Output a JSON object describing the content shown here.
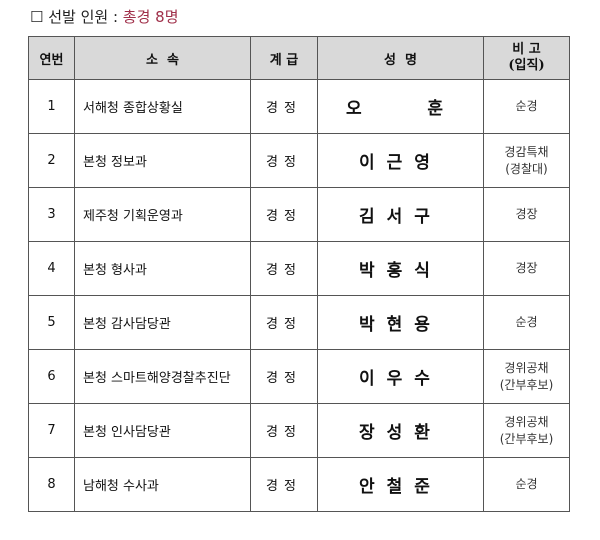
{
  "title": {
    "prefix": "☐ 선발 인원 : ",
    "highlight": "총경 8명"
  },
  "headers": [
    "연번",
    "소  속",
    "계 급",
    "성  명",
    "비 고\n(입직)"
  ],
  "rows": [
    {
      "no": "1",
      "org": "서해청 종합상황실",
      "rank": "경정",
      "name": "오   훈",
      "note": "순경"
    },
    {
      "no": "2",
      "org": "본청 정보과",
      "rank": "경정",
      "name": "이근영",
      "note": "경감특채\n(경찰대)"
    },
    {
      "no": "3",
      "org": "제주청 기획운영과",
      "rank": "경정",
      "name": "김서구",
      "note": "경장"
    },
    {
      "no": "4",
      "org": "본청 형사과",
      "rank": "경정",
      "name": "박홍식",
      "note": "경장"
    },
    {
      "no": "5",
      "org": "본청 감사담당관",
      "rank": "경정",
      "name": "박현용",
      "note": "순경"
    },
    {
      "no": "6",
      "org": "본청 스마트해양경찰추진단",
      "rank": "경정",
      "name": "이우수",
      "note": "경위공채\n(간부후보)"
    },
    {
      "no": "7",
      "org": "본청 인사담당관",
      "rank": "경정",
      "name": "장성환",
      "note": "경위공채\n(간부후보)"
    },
    {
      "no": "8",
      "org": "남해청 수사과",
      "rank": "경정",
      "name": "안철준",
      "note": "순경"
    }
  ]
}
